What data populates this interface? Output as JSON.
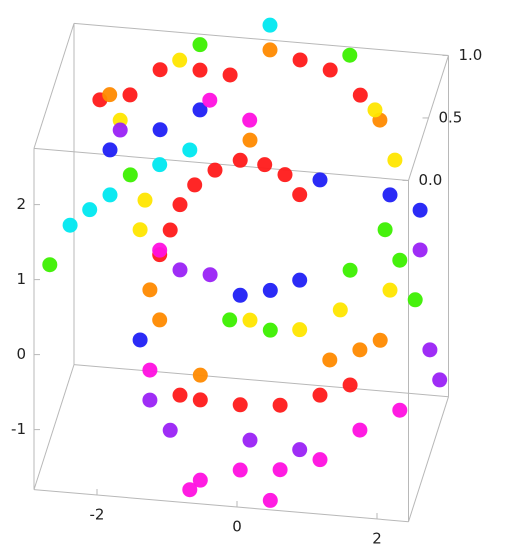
{
  "chart_data": {
    "type": "scatter3d",
    "xlim": [
      -2.9,
      2.45
    ],
    "ylim": [
      -1.8,
      2.75
    ],
    "zlim": [
      0,
      1
    ],
    "xticks": [
      -2,
      0,
      2
    ],
    "yticks": [
      -1,
      0,
      1,
      2
    ],
    "zticks": [
      {
        "value": 0,
        "label": "0.0"
      },
      {
        "value": 0.5,
        "label": "0.5"
      },
      {
        "value": 1,
        "label": "1.0"
      }
    ],
    "series": [
      {
        "color": "#ff1a1a",
        "x": [
          -0.24,
          0.11,
          0.4,
          0.61,
          -0.6,
          -0.89,
          -1.1,
          -1.24,
          -1.39,
          -0.81,
          -0.24,
          0.33,
          0.9,
          1.33,
          -1.1,
          -1.67,
          -1.1,
          -0.67,
          0.33,
          0.76,
          1.19,
          -2.53,
          -2.1
        ],
        "y": [
          1.97,
          1.94,
          1.83,
          1.58,
          1.81,
          1.59,
          1.31,
          0.96,
          0.62,
          -1.27,
          -1.29,
          -1.25,
          -1.07,
          -0.9,
          -1.23,
          2.23,
          2.27,
          2.24,
          2.52,
          2.42,
          2.12,
          1.76,
          1.86
        ],
        "z": [
          0.5,
          0.5,
          0.5,
          0.5,
          0.5,
          0.5,
          0.5,
          0.5,
          0.5,
          0.5,
          0.5,
          0.5,
          0.5,
          0.5,
          0.5,
          1,
          1,
          1,
          1,
          1,
          1,
          1,
          1
        ]
      },
      {
        "color": "#ff8a00",
        "x": [
          -1.53,
          -1.39,
          -0.81,
          1.04,
          1.47,
          1.76,
          -0.1,
          -2.39,
          1.47,
          -0.1
        ],
        "y": [
          0.14,
          -0.25,
          -0.94,
          -0.59,
          -0.42,
          -0.27,
          2.25,
          1.84,
          1.81,
          2.62
        ],
        "z": [
          0.5,
          0.5,
          0.5,
          0.5,
          0.5,
          0.5,
          0.5,
          1,
          1,
          1
        ]
      },
      {
        "color": "#ffe600",
        "x": [
          -1.6,
          -1.67,
          0.61,
          1.19,
          1.9,
          1.97,
          -0.1,
          -1.39,
          1.4,
          -2.24
        ],
        "y": [
          1.33,
          0.93,
          -0.22,
          0.09,
          0.41,
          2.15,
          -0.15,
          2.38,
          1.94,
          1.51
        ],
        "z": [
          0.5,
          0.5,
          0.5,
          0.5,
          0.5,
          0.5,
          0.5,
          1,
          1,
          1
        ]
      },
      {
        "color": "#3cf000",
        "x": [
          -1.81,
          1.83,
          2.04,
          1.33,
          -0.39,
          0.19,
          2.26,
          -2.96,
          -1.1,
          1.04
        ],
        "y": [
          1.65,
          1.21,
          0.82,
          0.63,
          -0.17,
          -0.26,
          0.31,
          0.36,
          2.61,
          2.64
        ],
        "z": [
          0.5,
          0.5,
          0.5,
          0.5,
          0.5,
          0.5,
          0.5,
          0.5,
          1,
          1
        ]
      },
      {
        "color": "#00e8f0",
        "x": [
          -2.67,
          -2.39,
          -2.1,
          -1.39,
          -0.96,
          -0.1
        ],
        "y": [
          0.91,
          1.14,
          1.36,
          1.82,
          2.05,
          2.95
        ],
        "z": [
          0.5,
          0.5,
          0.5,
          0.5,
          0.5,
          1
        ]
      },
      {
        "color": "#2020f5",
        "x": [
          1.9,
          2.33,
          -0.24,
          0.19,
          0.61,
          -1.67,
          0.9,
          -2.1,
          -1.1,
          -1.67
        ],
        "y": [
          1.68,
          1.51,
          0.17,
          0.27,
          0.44,
          -0.54,
          1.8,
          1.96,
          1.74,
          1.43
        ],
        "z": [
          0.5,
          0.5,
          0.5,
          0.5,
          0.5,
          0.5,
          0.5,
          0.5,
          1,
          1
        ]
      },
      {
        "color": "#9a22f5",
        "x": [
          -1.1,
          -0.67,
          -1.53,
          -1.24,
          2.47,
          2.61,
          0.61,
          -0.1,
          2.33,
          -2.24
        ],
        "y": [
          0.44,
          0.41,
          -1.33,
          -1.71,
          -0.34,
          -0.73,
          -1.82,
          -1.75,
          0.98,
          1.38
        ],
        "z": [
          0.5,
          0.5,
          0.5,
          0.5,
          0.5,
          0.5,
          0.5,
          0.5,
          0.5,
          1
        ]
      },
      {
        "color": "#ff10e0",
        "x": [
          -0.81,
          -0.24,
          0.33,
          0.9,
          1.47,
          2.04,
          -1.53,
          -1.39,
          0.19,
          -0.96,
          -0.39,
          -0.96
        ],
        "y": [
          -2.34,
          -2.16,
          -2.11,
          -1.93,
          -1.49,
          -1.18,
          -0.93,
          0.68,
          -2.53,
          -2.48,
          1.66,
          1.88
        ],
        "z": [
          0.5,
          0.5,
          0.5,
          0.5,
          0.5,
          0.5,
          0.5,
          0.5,
          0.5,
          0.5,
          1,
          1
        ]
      }
    ]
  }
}
